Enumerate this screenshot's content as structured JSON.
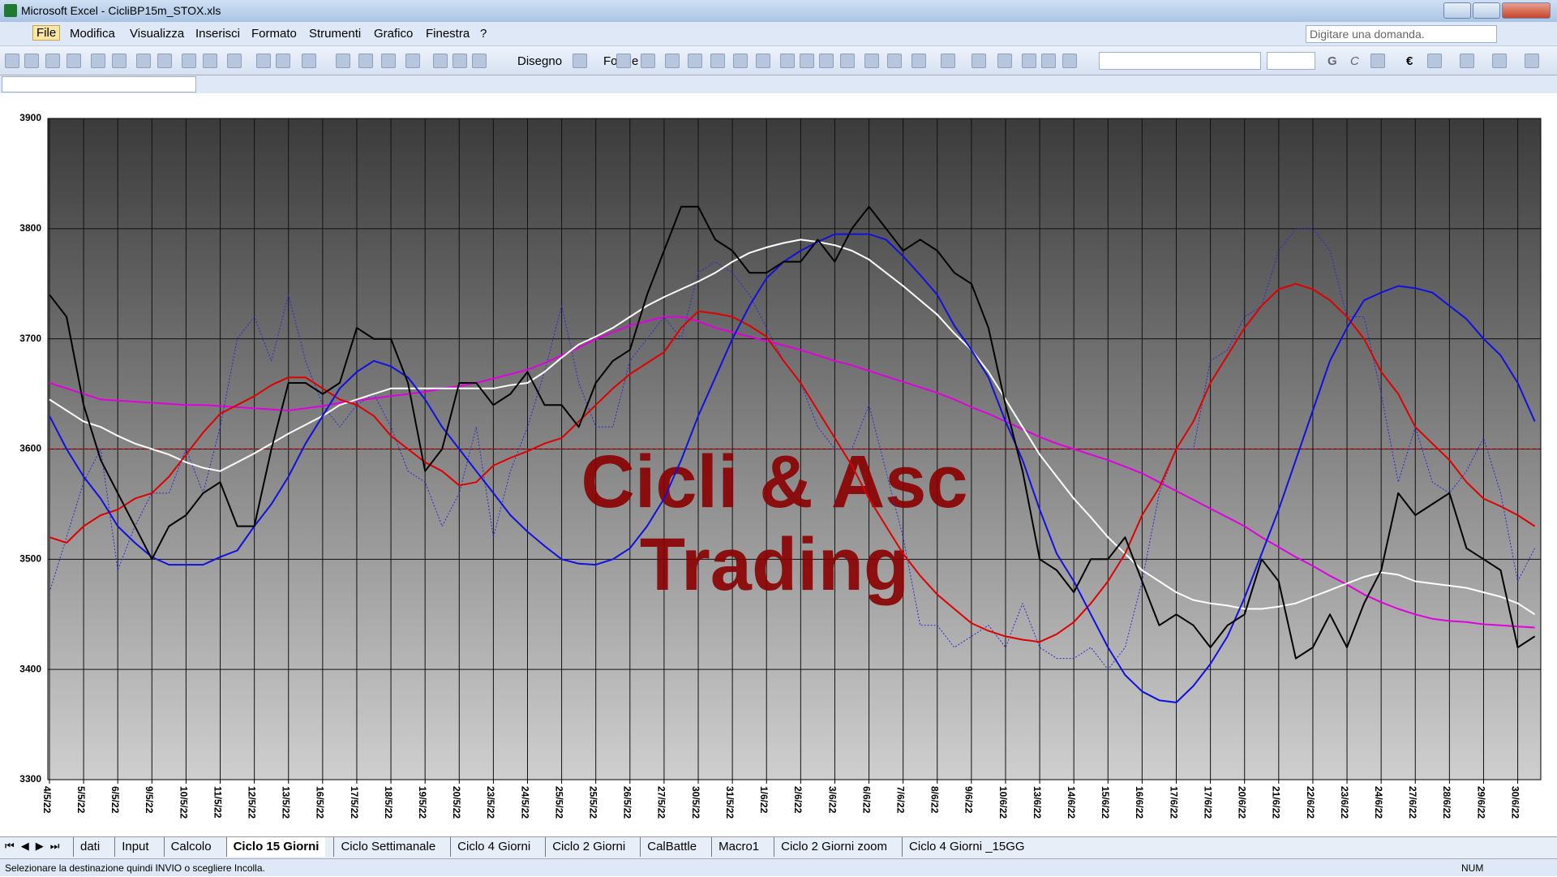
{
  "window": {
    "title": "Microsoft Excel - CicliBP15m_STOX.xls",
    "menus": [
      "File",
      "Modifica",
      "Visualizza",
      "Inserisci",
      "Formato",
      "Strumenti",
      "Grafico",
      "Finestra",
      "?"
    ],
    "help_box": "Digitare una domanda.",
    "toolbar": {
      "drawing": "Disegno",
      "shapes": "Forme",
      "bold": "G",
      "italic": "C",
      "currency": "€"
    },
    "sheet_tabs": [
      "dati",
      "Input",
      "Calcolo",
      "Ciclo 15 Giorni",
      "Ciclo Settimanale",
      "Ciclo 4 Giorni",
      "Ciclo 2 Giorni",
      "CalBattle",
      "Macro1",
      "Ciclo 2 Giorni zoom",
      "Ciclo 4 Giorni _15GG"
    ],
    "status": {
      "message": "Selezionare la destinazione quindi INVIO o scegliere Incolla.",
      "num": "NUM"
    }
  },
  "chart_data": {
    "type": "line",
    "annotations": [
      "Cicli & Asc",
      "Trading"
    ],
    "annotation_color": "#8b0000",
    "ylim": [
      3300,
      3900
    ],
    "yticks": [
      3300,
      3400,
      3500,
      3600,
      3700,
      3800,
      3900
    ],
    "grid": true,
    "reference_line": {
      "value": 3600,
      "color": "#c00000"
    },
    "categories": [
      "4/5/22",
      null,
      "5/5/22",
      null,
      "6/5/22",
      null,
      "9/5/22",
      null,
      "10/5/22",
      null,
      "11/5/22",
      null,
      "12/5/22",
      null,
      "13/5/22",
      null,
      "16/5/22",
      null,
      "17/5/22",
      null,
      "18/5/22",
      null,
      "19/5/22",
      null,
      "20/5/22",
      null,
      "23/5/22",
      null,
      "24/5/22",
      null,
      "25/5/22",
      null,
      "25/5/22",
      null,
      "26/5/22",
      null,
      "27/5/22",
      null,
      "30/5/22",
      null,
      "31/5/22",
      null,
      "1/6/22",
      null,
      "2/6/22",
      null,
      "3/6/22",
      null,
      "6/6/22",
      null,
      "7/6/22",
      null,
      "8/6/22",
      null,
      "9/6/22",
      null,
      "10/6/22",
      null,
      "13/6/22",
      null,
      "14/6/22",
      null,
      "15/6/22",
      null,
      "16/6/22",
      null,
      "17/6/22",
      null,
      "17/6/22",
      null,
      "20/6/22",
      null,
      "21/6/22",
      null,
      "22/6/22",
      null,
      "23/6/22",
      null,
      "24/6/22",
      null,
      "27/6/22",
      null,
      "28/6/22",
      null,
      "29/6/22",
      null,
      "30/6/22",
      null
    ],
    "series": [
      {
        "color": "#2a2ad8",
        "style": "dotted",
        "width": 1,
        "values": [
          3470,
          3520,
          3570,
          3600,
          3490,
          3530,
          3560,
          3560,
          3600,
          3560,
          3620,
          3700,
          3720,
          3680,
          3740,
          3680,
          3640,
          3620,
          3640,
          3650,
          3620,
          3580,
          3570,
          3530,
          3560,
          3620,
          3520,
          3580,
          3620,
          3670,
          3730,
          3660,
          3620,
          3620,
          3680,
          3700,
          3720,
          3700,
          3760,
          3770,
          3760,
          3740,
          3710,
          3680,
          3660,
          3620,
          3600,
          3600,
          3640,
          3580,
          3520,
          3440,
          3440,
          3420,
          3430,
          3440,
          3420,
          3460,
          3420,
          3410,
          3410,
          3420,
          3400,
          3420,
          3480,
          3560,
          3600,
          3600,
          3680,
          3690,
          3720,
          3730,
          3780,
          3800,
          3800,
          3780,
          3720,
          3720,
          3650,
          3570,
          3620,
          3570,
          3560,
          3580,
          3610,
          3560,
          3480,
          3510
        ]
      },
      {
        "color": "#e000e0",
        "style": "solid",
        "width": 2,
        "values": [
          3660,
          3655,
          3650,
          3645,
          3644,
          3643,
          3642,
          3641,
          3640,
          3640,
          3639,
          3638,
          3637,
          3636,
          3635,
          3637,
          3639,
          3642,
          3644,
          3646,
          3648,
          3650,
          3652,
          3655,
          3657,
          3660,
          3664,
          3668,
          3672,
          3678,
          3685,
          3692,
          3700,
          3706,
          3712,
          3716,
          3720,
          3720,
          3716,
          3710,
          3706,
          3702,
          3698,
          3694,
          3690,
          3685,
          3680,
          3676,
          3671,
          3666,
          3661,
          3656,
          3651,
          3645,
          3638,
          3632,
          3625,
          3618,
          3611,
          3605,
          3600,
          3595,
          3590,
          3584,
          3578,
          3570,
          3562,
          3554,
          3546,
          3538,
          3530,
          3520,
          3511,
          3502,
          3494,
          3485,
          3477,
          3468,
          3461,
          3455,
          3450,
          3446,
          3444,
          3443,
          3441,
          3440,
          3439,
          3438
        ]
      },
      {
        "color": "#ffffff",
        "style": "solid",
        "width": 2,
        "values": [
          3645,
          3635,
          3625,
          3620,
          3612,
          3605,
          3600,
          3595,
          3588,
          3583,
          3580,
          3588,
          3596,
          3605,
          3614,
          3622,
          3630,
          3640,
          3645,
          3650,
          3655,
          3655,
          3655,
          3655,
          3655,
          3655,
          3655,
          3658,
          3660,
          3670,
          3683,
          3695,
          3702,
          3710,
          3720,
          3730,
          3738,
          3745,
          3752,
          3760,
          3770,
          3778,
          3783,
          3787,
          3790,
          3788,
          3785,
          3780,
          3772,
          3760,
          3748,
          3735,
          3722,
          3705,
          3690,
          3670,
          3645,
          3620,
          3595,
          3575,
          3555,
          3538,
          3520,
          3505,
          3490,
          3480,
          3470,
          3463,
          3460,
          3458,
          3455,
          3455,
          3457,
          3460,
          3466,
          3472,
          3478,
          3484,
          3488,
          3486,
          3480,
          3478,
          3476,
          3474,
          3470,
          3466,
          3460,
          3450
        ]
      },
      {
        "color": "#e00000",
        "style": "solid",
        "width": 2,
        "values": [
          3520,
          3515,
          3530,
          3540,
          3545,
          3555,
          3560,
          3575,
          3595,
          3615,
          3632,
          3640,
          3648,
          3658,
          3665,
          3665,
          3655,
          3645,
          3640,
          3630,
          3612,
          3600,
          3588,
          3580,
          3567,
          3570,
          3585,
          3592,
          3598,
          3605,
          3610,
          3625,
          3640,
          3655,
          3668,
          3678,
          3688,
          3710,
          3725,
          3723,
          3720,
          3712,
          3702,
          3680,
          3660,
          3635,
          3610,
          3585,
          3555,
          3530,
          3505,
          3485,
          3468,
          3455,
          3442,
          3435,
          3430,
          3427,
          3425,
          3432,
          3443,
          3460,
          3480,
          3505,
          3540,
          3565,
          3600,
          3625,
          3660,
          3685,
          3710,
          3730,
          3745,
          3750,
          3745,
          3735,
          3720,
          3700,
          3670,
          3650,
          3620,
          3605,
          3590,
          3570,
          3555,
          3548,
          3540,
          3530
        ]
      },
      {
        "color": "#1010e0",
        "style": "solid",
        "width": 2,
        "values": [
          3630,
          3600,
          3575,
          3555,
          3530,
          3515,
          3502,
          3495,
          3495,
          3495,
          3502,
          3508,
          3530,
          3550,
          3575,
          3605,
          3630,
          3655,
          3670,
          3680,
          3675,
          3665,
          3645,
          3620,
          3600,
          3580,
          3560,
          3540,
          3525,
          3512,
          3500,
          3496,
          3495,
          3500,
          3510,
          3530,
          3555,
          3590,
          3630,
          3665,
          3700,
          3730,
          3755,
          3770,
          3780,
          3788,
          3795,
          3795,
          3795,
          3790,
          3775,
          3758,
          3740,
          3712,
          3690,
          3665,
          3625,
          3590,
          3545,
          3505,
          3480,
          3450,
          3420,
          3395,
          3380,
          3372,
          3370,
          3385,
          3405,
          3430,
          3465,
          3505,
          3545,
          3590,
          3635,
          3680,
          3710,
          3735,
          3742,
          3748,
          3746,
          3742,
          3730,
          3718,
          3700,
          3685,
          3660,
          3625
        ]
      },
      {
        "color": "#000000",
        "style": "solid",
        "width": 2,
        "values": [
          3740,
          3720,
          3640,
          3590,
          3560,
          3530,
          3500,
          3530,
          3540,
          3560,
          3570,
          3530,
          3530,
          3600,
          3660,
          3660,
          3650,
          3660,
          3710,
          3700,
          3700,
          3660,
          3580,
          3600,
          3660,
          3660,
          3640,
          3650,
          3670,
          3640,
          3640,
          3620,
          3660,
          3680,
          3690,
          3740,
          3780,
          3820,
          3820,
          3790,
          3780,
          3760,
          3760,
          3770,
          3770,
          3790,
          3770,
          3800,
          3820,
          3800,
          3780,
          3790,
          3780,
          3760,
          3750,
          3710,
          3640,
          3580,
          3500,
          3490,
          3470,
          3500,
          3500,
          3520,
          3480,
          3440,
          3450,
          3440,
          3420,
          3440,
          3450,
          3500,
          3480,
          3410,
          3420,
          3450,
          3420,
          3460,
          3490,
          3560,
          3540,
          3550,
          3560,
          3510,
          3500,
          3490,
          3420,
          3430
        ]
      }
    ]
  }
}
